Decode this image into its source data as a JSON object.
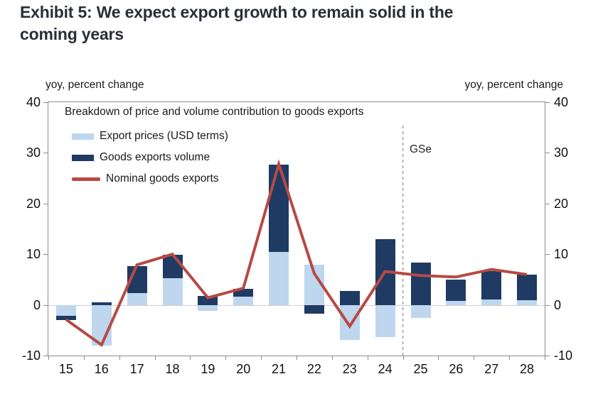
{
  "title": {
    "line1": "Exhibit 5: We expect export growth to remain solid in the",
    "line2": "coming years"
  },
  "chart": {
    "left_axis_unit": "yoy, percent change",
    "right_axis_unit": "yoy, percent change",
    "legend_title": "Breakdown of price and volume contribution to goods exports",
    "legend": [
      {
        "label": "Export prices (USD terms)",
        "swatch": "light-blue-rect",
        "color": "#bed7ee"
      },
      {
        "label": "Goods exports volume",
        "swatch": "navy-rect",
        "color": "#1f3a63"
      },
      {
        "label": "Nominal goods exports",
        "swatch": "red-line",
        "color": "#b64a44"
      }
    ],
    "forecast_label": "GSe"
  },
  "chart_data": {
    "type": "bar",
    "subtype": "stacked-bars-with-line-overlay",
    "title": "Breakdown of price and volume contribution to goods exports",
    "categories": [
      "15",
      "16",
      "17",
      "18",
      "19",
      "20",
      "21",
      "22",
      "23",
      "24",
      "25",
      "26",
      "27",
      "28"
    ],
    "series": [
      {
        "name": "Export prices (USD terms)",
        "role": "bar",
        "color": "#bed7ee",
        "values": [
          -2.2,
          -8.1,
          2.3,
          5.3,
          -1.2,
          1.6,
          10.5,
          7.9,
          -6.9,
          -6.4,
          -2.6,
          0.8,
          1.0,
          0.9
        ]
      },
      {
        "name": "Goods exports volume",
        "role": "bar",
        "color": "#1f3a63",
        "values": [
          -0.8,
          0.5,
          5.3,
          4.6,
          1.8,
          1.6,
          17.2,
          -1.8,
          2.8,
          13.0,
          8.3,
          4.2,
          5.6,
          5.1
        ]
      },
      {
        "name": "Nominal goods exports",
        "role": "line",
        "color": "#b64a44",
        "values": [
          -2.9,
          -7.9,
          7.9,
          10.0,
          1.4,
          3.3,
          27.8,
          6.2,
          -4.2,
          6.6,
          5.8,
          5.5,
          7.0,
          6.0
        ]
      }
    ],
    "ylabel_left": "yoy, percent change",
    "ylabel_right": "yoy, percent change",
    "ylim": [
      -10,
      40
    ],
    "yticks": [
      40,
      30,
      20,
      10,
      0,
      -10
    ],
    "gridlines_at": [
      0
    ],
    "forecast_divider_after_index": 9,
    "forecast_label": "GSe",
    "legend_position": "top-left-inside",
    "grid": "zero-line-only"
  },
  "colors": {
    "export_prices": "#bed7ee",
    "goods_volume": "#1f3a63",
    "nominal_line": "#b64a44",
    "axis": "#8c8c8c",
    "gridline": "#cfcfcf",
    "divider": "#a3a3a3",
    "title_text": "#2a2e37"
  }
}
